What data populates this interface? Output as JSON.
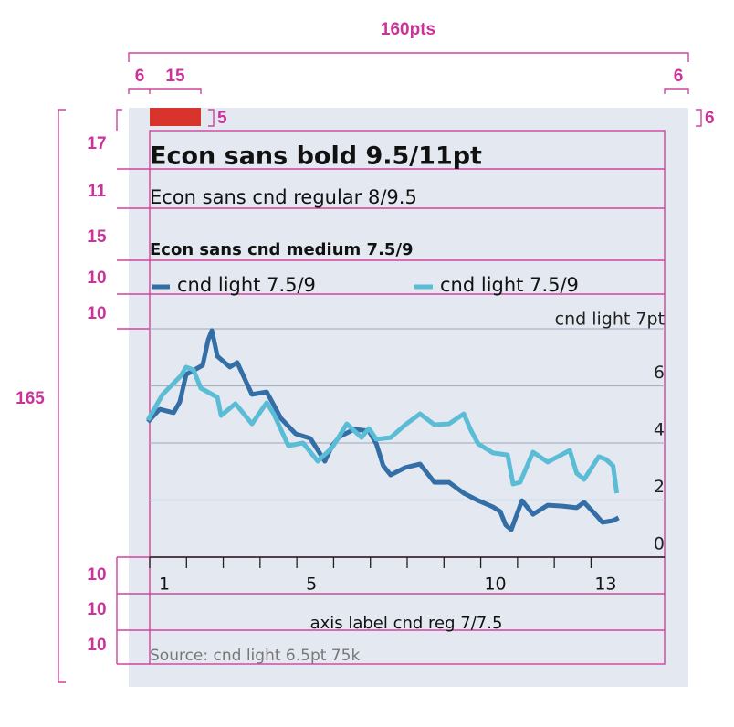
{
  "chart_data": {
    "type": "line",
    "title": "Econ sans bold 9.5/11pt",
    "subtitle": "Econ sans cnd regular 8/9.5",
    "header": "Econ sans cnd medium 7.5/9",
    "y_label": "cnd light 7pt",
    "x_label": "axis label cnd reg 7/7.5",
    "source": "Source: cnd light 6.5pt 75k",
    "xlim": [
      1,
      15
    ],
    "xticks": [
      1,
      5,
      10,
      13
    ],
    "xminor_ticks": [
      2,
      3,
      4,
      6,
      7,
      8,
      9,
      11,
      12
    ],
    "ylim": [
      0,
      8
    ],
    "yticks": [
      0,
      2,
      4,
      6
    ],
    "grid": true,
    "series": [
      {
        "name": "cnd light 7.5/9",
        "color": "#336ea6",
        "x": [
          0.95,
          1.27,
          1.65,
          1.82,
          1.99,
          2.44,
          2.59,
          2.69,
          2.84,
          3.18,
          3.38,
          3.78,
          4.18,
          4.57,
          4.97,
          5.37,
          5.76,
          5.96,
          6.16,
          6.56,
          6.96,
          7.16,
          7.35,
          7.55,
          7.95,
          8.35,
          8.74,
          9.14,
          9.54,
          9.93,
          10.33,
          10.53,
          10.68,
          10.83,
          11.12,
          11.42,
          11.82,
          12.22,
          12.61,
          12.81,
          13.16,
          13.31,
          13.6,
          13.75
        ],
        "values": [
          4.74,
          5.18,
          5.06,
          5.44,
          6.4,
          6.72,
          7.62,
          7.94,
          7.04,
          6.66,
          6.82,
          5.7,
          5.79,
          4.86,
          4.32,
          4.16,
          3.36,
          3.9,
          4.22,
          4.48,
          4.42,
          3.97,
          3.2,
          2.88,
          3.14,
          3.26,
          2.62,
          2.62,
          2.24,
          1.98,
          1.76,
          1.6,
          1.12,
          0.96,
          1.98,
          1.5,
          1.82,
          1.79,
          1.73,
          1.92,
          1.44,
          1.22,
          1.28,
          1.38
        ]
      },
      {
        "name": "cnd light 7.5/9",
        "color": "#5bbcd6",
        "x": [
          0.95,
          1.35,
          1.84,
          1.99,
          2.19,
          2.39,
          2.84,
          2.94,
          3.33,
          3.78,
          4.18,
          4.37,
          4.77,
          5.17,
          5.57,
          5.96,
          6.36,
          6.76,
          6.96,
          7.16,
          7.55,
          7.95,
          8.35,
          8.74,
          9.14,
          9.54,
          9.73,
          9.93,
          10.33,
          10.73,
          10.88,
          11.07,
          11.42,
          11.82,
          12.42,
          12.61,
          12.81,
          13.21,
          13.41,
          13.6,
          13.7
        ],
        "values": [
          4.8,
          5.7,
          6.34,
          6.66,
          6.56,
          5.92,
          5.6,
          4.96,
          5.38,
          4.67,
          5.41,
          5.02,
          3.9,
          4.0,
          3.36,
          3.84,
          4.67,
          4.19,
          4.51,
          4.13,
          4.19,
          4.64,
          5.02,
          4.64,
          4.67,
          5.02,
          4.45,
          3.97,
          3.65,
          3.58,
          2.56,
          2.62,
          3.68,
          3.33,
          3.74,
          2.94,
          2.72,
          3.52,
          3.42,
          3.2,
          2.24
        ]
      }
    ]
  },
  "annotations": {
    "width": "160pts",
    "margin_left": "6",
    "swatch_width": "15",
    "margin_right": "6",
    "swatch_height": "5",
    "top_pad": "6",
    "rows": [
      "17",
      "11",
      "15",
      "10",
      "10"
    ],
    "height": "165",
    "bottom_rows": [
      "10",
      "10",
      "10"
    ]
  }
}
